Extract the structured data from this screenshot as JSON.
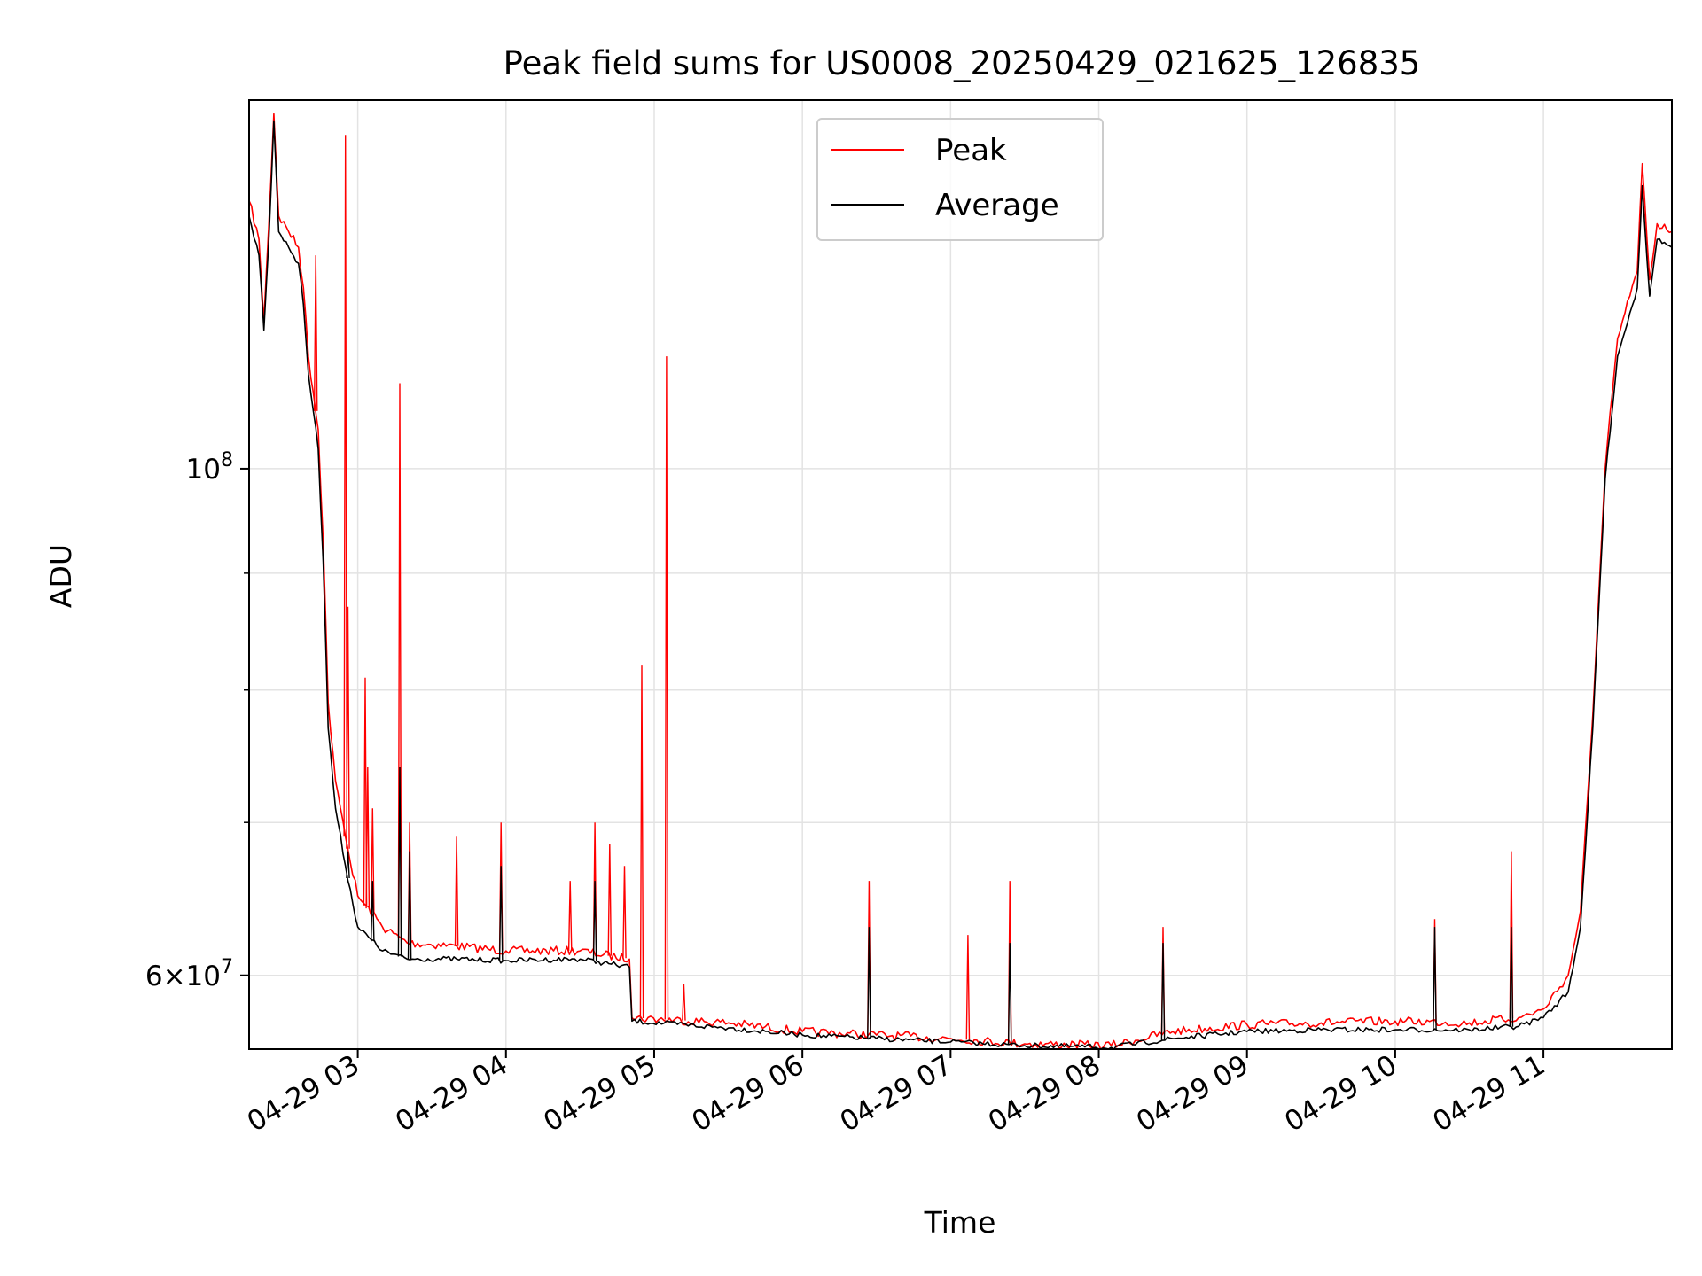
{
  "chart_data": {
    "type": "line",
    "title": "Peak field sums for US0008_20250429_021625_126835",
    "xlabel": "Time",
    "ylabel": "ADU",
    "y_scale": "log",
    "grid": true,
    "legend_position": "top-center",
    "x_ticks": [
      "04-29 03",
      "04-29 04",
      "04-29 05",
      "04-29 06",
      "04-29 07",
      "04-29 08",
      "04-29 09",
      "04-29 10",
      "04-29 11"
    ],
    "x_tick_times": [
      "2025-04-29T03:00",
      "2025-04-29T04:00",
      "2025-04-29T05:00",
      "2025-04-29T06:00",
      "2025-04-29T07:00",
      "2025-04-29T08:00",
      "2025-04-29T09:00",
      "2025-04-29T10:00",
      "2025-04-29T11:00"
    ],
    "xlim": [
      "2025-04-29T02:16",
      "2025-04-29T11:52"
    ],
    "ylim": [
      55700000,
      145000000
    ],
    "y_major_ticks": [
      {
        "value": 100000000,
        "label": "10^8"
      },
      {
        "value": 60000000,
        "label": "6×10^7"
      }
    ],
    "y_minor_ticks": [
      70000000,
      80000000,
      90000000
    ],
    "series": [
      {
        "name": "Peak",
        "color": "#ff0000",
        "points": [
          [
            "2025-04-29T02:16",
            131000000
          ],
          [
            "2025-04-29T02:20",
            126000000
          ],
          [
            "2025-04-29T02:22",
            116000000
          ],
          [
            "2025-04-29T02:24",
            128000000
          ],
          [
            "2025-04-29T02:26",
            143000000
          ],
          [
            "2025-04-29T02:28",
            129000000
          ],
          [
            "2025-04-29T02:32",
            127000000
          ],
          [
            "2025-04-29T02:36",
            125000000
          ],
          [
            "2025-04-29T02:38",
            120000000
          ],
          [
            "2025-04-29T02:40",
            112000000
          ],
          [
            "2025-04-29T02:42",
            108000000
          ],
          [
            "2025-04-29T02:44",
            104000000
          ],
          [
            "2025-04-29T02:46",
            93000000
          ],
          [
            "2025-04-29T02:47",
            86000000
          ],
          [
            "2025-04-29T02:48",
            79000000
          ],
          [
            "2025-04-29T02:51",
            73000000
          ],
          [
            "2025-04-29T02:55",
            69000000
          ],
          [
            "2025-04-29T03:00",
            65000000
          ],
          [
            "2025-04-29T03:10",
            63000000
          ],
          [
            "2025-04-29T03:20",
            62000000
          ],
          [
            "2025-04-29T03:40",
            61800000
          ],
          [
            "2025-04-29T04:00",
            61500000
          ],
          [
            "2025-04-29T04:30",
            61500000
          ],
          [
            "2025-04-29T04:50",
            61000000
          ],
          [
            "2025-04-29T04:51",
            57500000
          ],
          [
            "2025-04-29T05:30",
            57200000
          ],
          [
            "2025-04-29T06:00",
            56700000
          ],
          [
            "2025-04-29T06:30",
            56500000
          ],
          [
            "2025-04-29T07:00",
            56300000
          ],
          [
            "2025-04-29T07:30",
            56000000
          ],
          [
            "2025-04-29T08:05",
            55900000
          ],
          [
            "2025-04-29T08:30",
            56700000
          ],
          [
            "2025-04-29T09:00",
            57100000
          ],
          [
            "2025-04-29T09:30",
            57200000
          ],
          [
            "2025-04-29T10:00",
            57300000
          ],
          [
            "2025-04-29T10:30",
            57200000
          ],
          [
            "2025-04-29T10:50",
            57500000
          ],
          [
            "2025-04-29T11:00",
            58000000
          ],
          [
            "2025-04-29T11:10",
            60000000
          ],
          [
            "2025-04-29T11:15",
            64000000
          ],
          [
            "2025-04-29T11:20",
            78000000
          ],
          [
            "2025-04-29T11:25",
            100000000
          ],
          [
            "2025-04-29T11:30",
            114000000
          ],
          [
            "2025-04-29T11:35",
            119000000
          ],
          [
            "2025-04-29T11:38",
            122000000
          ],
          [
            "2025-04-29T11:40",
            136000000
          ],
          [
            "2025-04-29T11:43",
            121000000
          ],
          [
            "2025-04-29T11:46",
            128000000
          ],
          [
            "2025-04-29T11:52",
            127000000
          ]
        ],
        "spikes": [
          [
            "2025-04-29T02:43",
            124000000
          ],
          [
            "2025-04-29T02:55",
            140000000
          ],
          [
            "2025-04-29T03:17",
            109000000
          ],
          [
            "2025-04-29T05:05",
            112000000
          ],
          [
            "2025-04-29T04:55",
            82000000
          ],
          [
            "2025-04-29T03:03",
            81000000
          ],
          [
            "2025-04-29T02:56",
            87000000
          ],
          [
            "2025-04-29T03:04",
            74000000
          ],
          [
            "2025-04-29T03:06",
            71000000
          ],
          [
            "2025-04-29T03:21",
            70000000
          ],
          [
            "2025-04-29T03:40",
            69000000
          ],
          [
            "2025-04-29T03:58",
            70000000
          ],
          [
            "2025-04-29T04:36",
            70000000
          ],
          [
            "2025-04-29T04:42",
            68500000
          ],
          [
            "2025-04-29T04:26",
            66000000
          ],
          [
            "2025-04-29T04:48",
            67000000
          ],
          [
            "2025-04-29T06:27",
            66000000
          ],
          [
            "2025-04-29T07:24",
            66000000
          ],
          [
            "2025-04-29T07:07",
            62500000
          ],
          [
            "2025-04-29T08:26",
            63000000
          ],
          [
            "2025-04-29T10:16",
            63500000
          ],
          [
            "2025-04-29T10:47",
            68000000
          ],
          [
            "2025-04-29T05:12",
            59500000
          ]
        ]
      },
      {
        "name": "Average",
        "color": "#000000",
        "points": [
          [
            "2025-04-29T02:16",
            129000000
          ],
          [
            "2025-04-29T02:20",
            124000000
          ],
          [
            "2025-04-29T02:22",
            115000000
          ],
          [
            "2025-04-29T02:24",
            126000000
          ],
          [
            "2025-04-29T02:26",
            142000000
          ],
          [
            "2025-04-29T02:28",
            127000000
          ],
          [
            "2025-04-29T02:32",
            125000000
          ],
          [
            "2025-04-29T02:36",
            123000000
          ],
          [
            "2025-04-29T02:38",
            118000000
          ],
          [
            "2025-04-29T02:40",
            110000000
          ],
          [
            "2025-04-29T02:42",
            106000000
          ],
          [
            "2025-04-29T02:44",
            102000000
          ],
          [
            "2025-04-29T02:46",
            91000000
          ],
          [
            "2025-04-29T02:47",
            84000000
          ],
          [
            "2025-04-29T02:48",
            77000000
          ],
          [
            "2025-04-29T02:51",
            71000000
          ],
          [
            "2025-04-29T02:55",
            67000000
          ],
          [
            "2025-04-29T03:00",
            63000000
          ],
          [
            "2025-04-29T03:10",
            61500000
          ],
          [
            "2025-04-29T03:20",
            61000000
          ],
          [
            "2025-04-29T03:40",
            61000000
          ],
          [
            "2025-04-29T04:00",
            60900000
          ],
          [
            "2025-04-29T04:30",
            61000000
          ],
          [
            "2025-04-29T04:50",
            60500000
          ],
          [
            "2025-04-29T04:51",
            57300000
          ],
          [
            "2025-04-29T05:30",
            56900000
          ],
          [
            "2025-04-29T06:00",
            56500000
          ],
          [
            "2025-04-29T06:30",
            56300000
          ],
          [
            "2025-04-29T07:00",
            56100000
          ],
          [
            "2025-04-29T07:30",
            55900000
          ],
          [
            "2025-04-29T08:05",
            55800000
          ],
          [
            "2025-04-29T08:30",
            56300000
          ],
          [
            "2025-04-29T09:00",
            56700000
          ],
          [
            "2025-04-29T09:30",
            56800000
          ],
          [
            "2025-04-29T10:00",
            56800000
          ],
          [
            "2025-04-29T10:30",
            56800000
          ],
          [
            "2025-04-29T10:50",
            57000000
          ],
          [
            "2025-04-29T11:00",
            57500000
          ],
          [
            "2025-04-29T11:10",
            59000000
          ],
          [
            "2025-04-29T11:15",
            63000000
          ],
          [
            "2025-04-29T11:20",
            77000000
          ],
          [
            "2025-04-29T11:25",
            99000000
          ],
          [
            "2025-04-29T11:30",
            112000000
          ],
          [
            "2025-04-29T11:35",
            117000000
          ],
          [
            "2025-04-29T11:38",
            120000000
          ],
          [
            "2025-04-29T11:40",
            133000000
          ],
          [
            "2025-04-29T11:43",
            119000000
          ],
          [
            "2025-04-29T11:46",
            126000000
          ],
          [
            "2025-04-29T11:52",
            125000000
          ]
        ],
        "spikes": [
          [
            "2025-04-29T03:17",
            74000000
          ],
          [
            "2025-04-29T03:21",
            68000000
          ],
          [
            "2025-04-29T06:27",
            63000000
          ],
          [
            "2025-04-29T07:24",
            62000000
          ],
          [
            "2025-04-29T08:26",
            62000000
          ],
          [
            "2025-04-29T10:16",
            63000000
          ],
          [
            "2025-04-29T10:47",
            63000000
          ],
          [
            "2025-04-29T03:58",
            67000000
          ],
          [
            "2025-04-29T04:36",
            66000000
          ],
          [
            "2025-04-29T02:56",
            68000000
          ],
          [
            "2025-04-29T03:06",
            66000000
          ]
        ]
      }
    ]
  }
}
